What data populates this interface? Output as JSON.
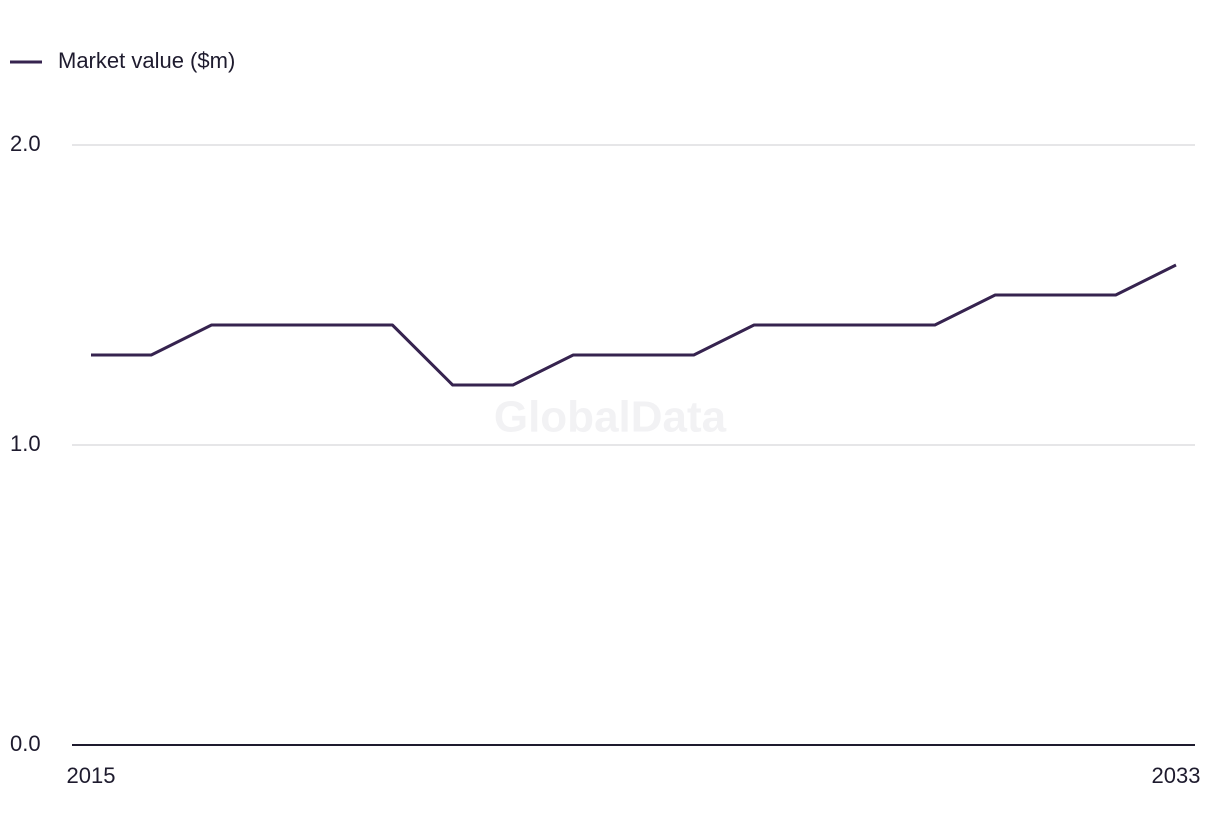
{
  "chart_data": {
    "type": "line",
    "watermark": "GlobalData",
    "categories": [
      "2015",
      null,
      null,
      null,
      null,
      null,
      null,
      null,
      null,
      null,
      null,
      null,
      null,
      null,
      null,
      null,
      null,
      null,
      "2033"
    ],
    "series": [
      {
        "name": "Market value ($m)",
        "color": "#36234f",
        "values": [
          1.3,
          1.3,
          1.4,
          1.4,
          1.4,
          1.4,
          1.2,
          1.2,
          1.3,
          1.3,
          1.3,
          1.4,
          1.4,
          1.4,
          1.4,
          1.5,
          1.5,
          1.5,
          1.6
        ]
      }
    ],
    "ylim": [
      0,
      2
    ],
    "yticks": [
      {
        "value": 0,
        "label": "0.0"
      },
      {
        "value": 1,
        "label": "1.0"
      },
      {
        "value": 2,
        "label": "2.0"
      }
    ],
    "grid": true,
    "legend": "top-left"
  }
}
